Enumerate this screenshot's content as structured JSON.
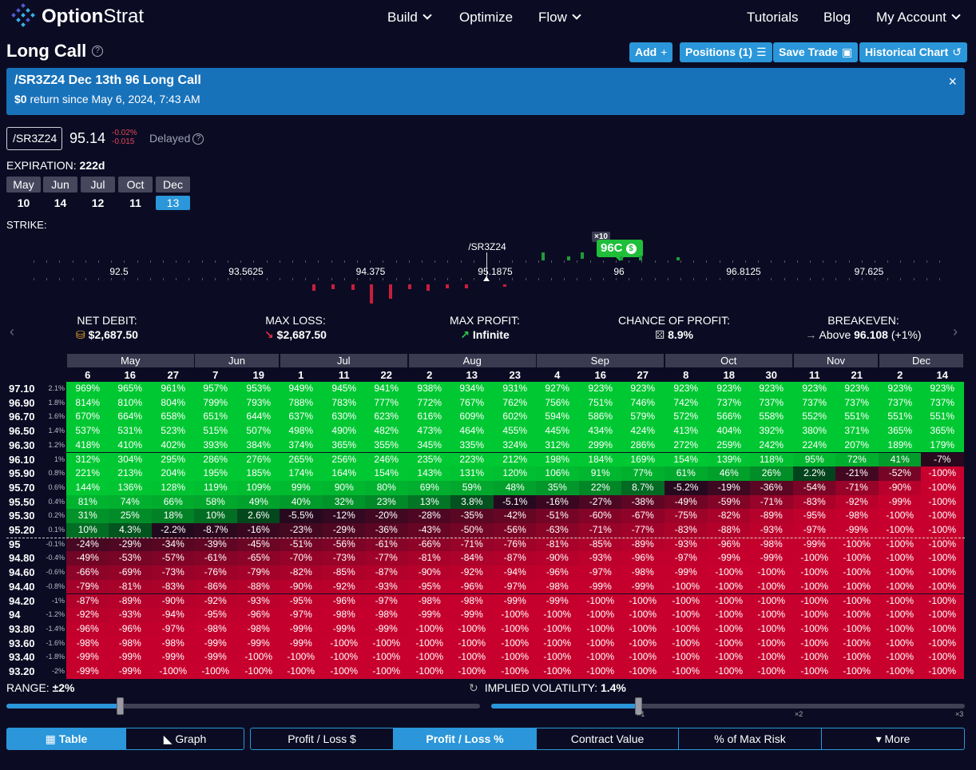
{
  "nav": {
    "logo_text_a": "Option",
    "logo_text_b": "Strat",
    "build": "Build",
    "optimize": "Optimize",
    "flow": "Flow",
    "tutorials": "Tutorials",
    "blog": "Blog",
    "account": "My Account"
  },
  "title": "Long Call",
  "toolbar": {
    "add": "Add",
    "add_icon": "+",
    "positions": "Positions (1)",
    "positions_icon": "☰",
    "save": "Save Trade",
    "save_icon": "▣",
    "history": "Historical Chart",
    "history_icon": "↺"
  },
  "alert": {
    "title": "/SR3Z24 Dec 13th 96 Long Call",
    "amount": "$0",
    "since": " return since May 6, 2024, 7:43 AM",
    "close": "×"
  },
  "symbol": {
    "value": "/SR3Z24",
    "price": "95.14",
    "change_pct": "-0.02%",
    "change": "-0.015",
    "delayed": "Delayed"
  },
  "expiration": {
    "label": "EXPIRATION:",
    "days": "222d",
    "dates": [
      {
        "month": "May",
        "day": "10"
      },
      {
        "month": "Jun",
        "day": "14"
      },
      {
        "month": "Jul",
        "day": "12"
      },
      {
        "month": "Oct",
        "day": "11"
      },
      {
        "month": "Dec",
        "day": "13",
        "selected": true
      }
    ]
  },
  "strike": {
    "label": "STRIKE:",
    "ticks": [
      "92.5",
      "93.5625",
      "94.375",
      "95.1875",
      "96",
      "96.8125",
      "97.625"
    ],
    "current_symbol": "/SR3Z24",
    "position_qty": "×10",
    "position_label": "96C",
    "position_badge": "$"
  },
  "stats": {
    "net_debit_label": "NET DEBIT:",
    "net_debit": "$2,687.50",
    "max_loss_label": "MAX LOSS:",
    "max_loss": "$2,687.50",
    "max_profit_label": "MAX PROFIT:",
    "max_profit": "Infinite",
    "cop_label": "CHANCE OF PROFIT:",
    "cop": "8.9%",
    "breakeven_label": "BREAKEVEN:",
    "breakeven_pre": "Above ",
    "breakeven_val": "96.108",
    "breakeven_post": " (+1%)"
  },
  "table": {
    "months": [
      {
        "name": "May",
        "span": 3
      },
      {
        "name": "Jun",
        "span": 2
      },
      {
        "name": "Jul",
        "span": 3
      },
      {
        "name": "Aug",
        "span": 3
      },
      {
        "name": "Sep",
        "span": 3
      },
      {
        "name": "Oct",
        "span": 3
      },
      {
        "name": "Nov",
        "span": 2
      },
      {
        "name": "Dec",
        "span": 2
      }
    ],
    "days": [
      "6",
      "16",
      "27",
      "7",
      "19",
      "1",
      "11",
      "22",
      "2",
      "13",
      "23",
      "4",
      "16",
      "27",
      "8",
      "18",
      "30",
      "11",
      "21",
      "2",
      "14"
    ],
    "rows": [
      {
        "price": "97.10",
        "pct": "2.1%",
        "values": [
          "969%",
          "965%",
          "961%",
          "957%",
          "953%",
          "949%",
          "945%",
          "941%",
          "938%",
          "934%",
          "931%",
          "927%",
          "923%",
          "923%",
          "923%",
          "923%",
          "923%",
          "923%",
          "923%",
          "923%",
          "923%"
        ]
      },
      {
        "price": "96.90",
        "pct": "1.8%",
        "values": [
          "814%",
          "810%",
          "804%",
          "799%",
          "793%",
          "788%",
          "783%",
          "777%",
          "772%",
          "767%",
          "762%",
          "756%",
          "751%",
          "746%",
          "742%",
          "737%",
          "737%",
          "737%",
          "737%",
          "737%",
          "737%"
        ]
      },
      {
        "price": "96.70",
        "pct": "1.6%",
        "values": [
          "670%",
          "664%",
          "658%",
          "651%",
          "644%",
          "637%",
          "630%",
          "623%",
          "616%",
          "609%",
          "602%",
          "594%",
          "586%",
          "579%",
          "572%",
          "566%",
          "558%",
          "552%",
          "551%",
          "551%",
          "551%"
        ]
      },
      {
        "price": "96.50",
        "pct": "1.4%",
        "values": [
          "537%",
          "531%",
          "523%",
          "515%",
          "507%",
          "498%",
          "490%",
          "482%",
          "473%",
          "464%",
          "455%",
          "445%",
          "434%",
          "424%",
          "413%",
          "404%",
          "392%",
          "380%",
          "371%",
          "365%",
          "365%"
        ]
      },
      {
        "price": "96.30",
        "pct": "1.2%",
        "values": [
          "418%",
          "410%",
          "402%",
          "393%",
          "384%",
          "374%",
          "365%",
          "355%",
          "345%",
          "335%",
          "324%",
          "312%",
          "299%",
          "286%",
          "272%",
          "259%",
          "242%",
          "224%",
          "207%",
          "189%",
          "179%"
        ]
      },
      {
        "price": "96.10",
        "pct": "1%",
        "values": [
          "312%",
          "304%",
          "295%",
          "286%",
          "276%",
          "265%",
          "256%",
          "246%",
          "235%",
          "223%",
          "212%",
          "198%",
          "184%",
          "169%",
          "154%",
          "139%",
          "118%",
          "95%",
          "72%",
          "41%",
          "-7%"
        ]
      },
      {
        "price": "95.90",
        "pct": "0.8%",
        "values": [
          "221%",
          "213%",
          "204%",
          "195%",
          "185%",
          "174%",
          "164%",
          "154%",
          "143%",
          "131%",
          "120%",
          "106%",
          "91%",
          "77%",
          "61%",
          "46%",
          "26%",
          "2.2%",
          "-21%",
          "-52%",
          "-100%"
        ]
      },
      {
        "price": "95.70",
        "pct": "0.6%",
        "values": [
          "144%",
          "136%",
          "128%",
          "119%",
          "109%",
          "99%",
          "90%",
          "80%",
          "69%",
          "59%",
          "48%",
          "35%",
          "22%",
          "8.7%",
          "-5.2%",
          "-19%",
          "-36%",
          "-54%",
          "-71%",
          "-90%",
          "-100%"
        ]
      },
      {
        "price": "95.50",
        "pct": "0.4%",
        "values": [
          "81%",
          "74%",
          "66%",
          "58%",
          "49%",
          "40%",
          "32%",
          "23%",
          "13%",
          "3.8%",
          "-5.1%",
          "-16%",
          "-27%",
          "-38%",
          "-49%",
          "-59%",
          "-71%",
          "-83%",
          "-92%",
          "-99%",
          "-100%"
        ]
      },
      {
        "price": "95.30",
        "pct": "0.2%",
        "values": [
          "31%",
          "25%",
          "18%",
          "10%",
          "2.6%",
          "-5.5%",
          "-12%",
          "-20%",
          "-28%",
          "-35%",
          "-42%",
          "-51%",
          "-60%",
          "-67%",
          "-75%",
          "-82%",
          "-89%",
          "-95%",
          "-98%",
          "-100%",
          "-100%"
        ]
      },
      {
        "price": "95.20",
        "pct": "0.1%",
        "values": [
          "10%",
          "4.3%",
          "-2.2%",
          "-8.7%",
          "-16%",
          "-23%",
          "-29%",
          "-36%",
          "-43%",
          "-50%",
          "-56%",
          "-63%",
          "-71%",
          "-77%",
          "-83%",
          "-88%",
          "-93%",
          "-97%",
          "-99%",
          "-100%",
          "-100%"
        ]
      },
      {
        "price": "95",
        "pct": "-0.1%",
        "values": [
          "-24%",
          "-29%",
          "-34%",
          "-39%",
          "-45%",
          "-51%",
          "-56%",
          "-61%",
          "-66%",
          "-71%",
          "-76%",
          "-81%",
          "-85%",
          "-89%",
          "-93%",
          "-96%",
          "-98%",
          "-99%",
          "-100%",
          "-100%",
          "-100%"
        ]
      },
      {
        "price": "94.80",
        "pct": "-0.4%",
        "values": [
          "-49%",
          "-53%",
          "-57%",
          "-61%",
          "-65%",
          "-70%",
          "-73%",
          "-77%",
          "-81%",
          "-84%",
          "-87%",
          "-90%",
          "-93%",
          "-96%",
          "-97%",
          "-99%",
          "-99%",
          "-100%",
          "-100%",
          "-100%",
          "-100%"
        ]
      },
      {
        "price": "94.60",
        "pct": "-0.6%",
        "values": [
          "-66%",
          "-69%",
          "-73%",
          "-76%",
          "-79%",
          "-82%",
          "-85%",
          "-87%",
          "-90%",
          "-92%",
          "-94%",
          "-96%",
          "-97%",
          "-98%",
          "-99%",
          "-100%",
          "-100%",
          "-100%",
          "-100%",
          "-100%",
          "-100%"
        ]
      },
      {
        "price": "94.40",
        "pct": "-0.8%",
        "values": [
          "-79%",
          "-81%",
          "-83%",
          "-86%",
          "-88%",
          "-90%",
          "-92%",
          "-93%",
          "-95%",
          "-96%",
          "-97%",
          "-98%",
          "-99%",
          "-99%",
          "-100%",
          "-100%",
          "-100%",
          "-100%",
          "-100%",
          "-100%",
          "-100%"
        ]
      },
      {
        "price": "94.20",
        "pct": "-1%",
        "values": [
          "-87%",
          "-89%",
          "-90%",
          "-92%",
          "-93%",
          "-95%",
          "-96%",
          "-97%",
          "-98%",
          "-98%",
          "-99%",
          "-99%",
          "-100%",
          "-100%",
          "-100%",
          "-100%",
          "-100%",
          "-100%",
          "-100%",
          "-100%",
          "-100%"
        ]
      },
      {
        "price": "94",
        "pct": "-1.2%",
        "values": [
          "-92%",
          "-93%",
          "-94%",
          "-95%",
          "-96%",
          "-97%",
          "-98%",
          "-98%",
          "-99%",
          "-99%",
          "-100%",
          "-100%",
          "-100%",
          "-100%",
          "-100%",
          "-100%",
          "-100%",
          "-100%",
          "-100%",
          "-100%",
          "-100%"
        ]
      },
      {
        "price": "93.80",
        "pct": "-1.4%",
        "values": [
          "-96%",
          "-96%",
          "-97%",
          "-98%",
          "-98%",
          "-99%",
          "-99%",
          "-99%",
          "-100%",
          "-100%",
          "-100%",
          "-100%",
          "-100%",
          "-100%",
          "-100%",
          "-100%",
          "-100%",
          "-100%",
          "-100%",
          "-100%",
          "-100%"
        ]
      },
      {
        "price": "93.60",
        "pct": "-1.6%",
        "values": [
          "-98%",
          "-98%",
          "-98%",
          "-99%",
          "-99%",
          "-99%",
          "-100%",
          "-100%",
          "-100%",
          "-100%",
          "-100%",
          "-100%",
          "-100%",
          "-100%",
          "-100%",
          "-100%",
          "-100%",
          "-100%",
          "-100%",
          "-100%",
          "-100%"
        ]
      },
      {
        "price": "93.40",
        "pct": "-1.8%",
        "values": [
          "-99%",
          "-99%",
          "-99%",
          "-99%",
          "-100%",
          "-100%",
          "-100%",
          "-100%",
          "-100%",
          "-100%",
          "-100%",
          "-100%",
          "-100%",
          "-100%",
          "-100%",
          "-100%",
          "-100%",
          "-100%",
          "-100%",
          "-100%",
          "-100%"
        ]
      },
      {
        "price": "93.20",
        "pct": "-2%",
        "values": [
          "-99%",
          "-99%",
          "-100%",
          "-100%",
          "-100%",
          "-100%",
          "-100%",
          "-100%",
          "-100%",
          "-100%",
          "-100%",
          "-100%",
          "-100%",
          "-100%",
          "-100%",
          "-100%",
          "-100%",
          "-100%",
          "-100%",
          "-100%",
          "-100%"
        ]
      }
    ]
  },
  "controls": {
    "range_label": "RANGE:",
    "range_value": "±2%",
    "range_fraction": 0.24,
    "iv_label": "IMPLIED VOLATILITY:",
    "iv_value": "1.4%",
    "iv_fraction": 0.31,
    "iv_ticks": [
      "×1",
      "×2",
      "×3"
    ]
  },
  "view_tabs": {
    "table": "Table",
    "table_icon": "▦",
    "graph": "Graph",
    "graph_icon": "◣",
    "pl_dollar": "Profit / Loss $",
    "pl_pct": "Profit / Loss %",
    "contract": "Contract Value",
    "max_risk": "% of Max Risk",
    "more": "More",
    "more_icon": "▾"
  },
  "colors": {
    "accent": "#2b96d9",
    "alert_bg": "#1872ba",
    "profit": "#00c832",
    "loss": "#c8002d",
    "page_bg": "#0b0c23"
  }
}
